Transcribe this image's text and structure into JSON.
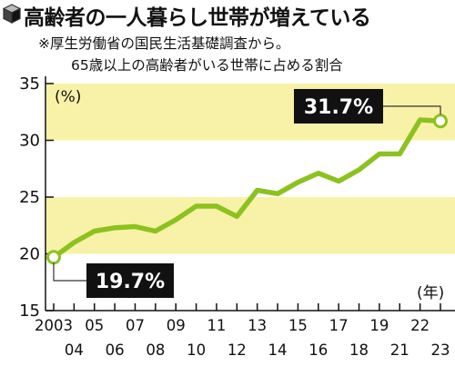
{
  "header": {
    "title": "高齢者の一人暮らし世帯が増えている",
    "note_line1": "※厚生労働省の国民生活基礎調査から。",
    "note_line2": "65歳以上の高齢者がいる世帯に占める割合"
  },
  "colors": {
    "band": "#f8f1a8",
    "line": "#8cc21f",
    "callout_bg": "#111111",
    "axis": "#111111"
  },
  "chart_data": {
    "type": "line",
    "title": "高齢者の一人暮らし世帯が増えている",
    "ylabel": "(%)",
    "xlabel": "(年)",
    "ylim": [
      15,
      35
    ],
    "yticks": [
      15,
      20,
      25,
      30,
      35
    ],
    "grid": false,
    "shaded_bands": [
      [
        20,
        25
      ],
      [
        30,
        35
      ]
    ],
    "x": [
      2003,
      2004,
      2005,
      2006,
      2007,
      2008,
      2009,
      2010,
      2011,
      2012,
      2013,
      2014,
      2015,
      2016,
      2017,
      2018,
      2019,
      2021,
      2022,
      2023
    ],
    "xtick_labels": [
      "2003",
      "04",
      "05",
      "06",
      "07",
      "08",
      "09",
      "10",
      "11",
      "12",
      "13",
      "14",
      "15",
      "16",
      "17",
      "18",
      "19",
      "21",
      "22",
      "23"
    ],
    "series": [
      {
        "values": [
          19.7,
          21.0,
          22.0,
          22.3,
          22.4,
          22.0,
          23.0,
          24.2,
          24.2,
          23.3,
          25.6,
          25.3,
          26.3,
          27.1,
          26.4,
          27.4,
          28.8,
          28.8,
          31.8,
          31.7
        ]
      }
    ],
    "annotations": [
      {
        "text": "19.7%",
        "x": 2003,
        "y": 19.7
      },
      {
        "text": "31.7%",
        "x": 2023,
        "y": 31.7
      }
    ]
  }
}
